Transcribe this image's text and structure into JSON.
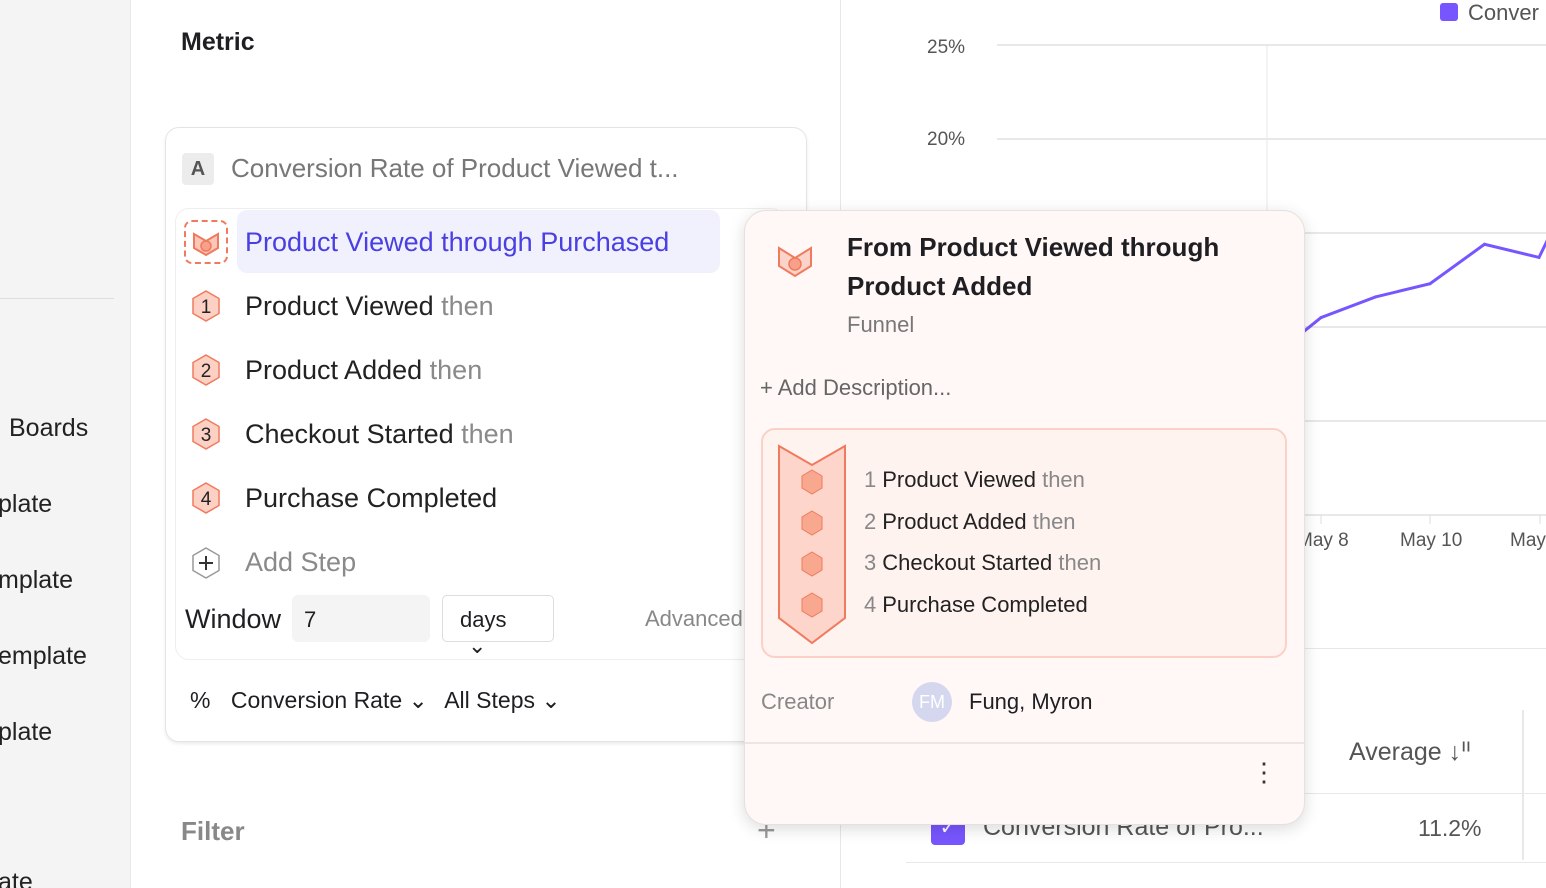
{
  "sidebar": {
    "items": [
      "Boards",
      "plate",
      "mplate",
      "emplate",
      "plate",
      "ate"
    ]
  },
  "metric": {
    "title": "Metric",
    "badge": "A",
    "card_title": "Conversion Rate of Product Viewed t...",
    "selected": "Product Viewed through Purchased",
    "steps": [
      {
        "num": "1",
        "name": "Product Viewed",
        "suffix": "then"
      },
      {
        "num": "2",
        "name": "Product Added",
        "suffix": "then"
      },
      {
        "num": "3",
        "name": "Checkout Started",
        "suffix": "then"
      },
      {
        "num": "4",
        "name": "Purchase Completed",
        "suffix": ""
      }
    ],
    "add_step": "Add Step",
    "window_label": "Window",
    "window_value": "7",
    "window_unit": "days",
    "advanced": "Advanced",
    "measure_icon": "%",
    "measure": "Conversion Rate",
    "steps_scope": "All Steps"
  },
  "filter": {
    "label": "Filter",
    "add": "+"
  },
  "popup": {
    "title": "From Product Viewed through Product Added",
    "type": "Funnel",
    "add_description": "+ Add Description...",
    "steps": [
      {
        "num": "1",
        "name": "Product Viewed",
        "suffix": "then"
      },
      {
        "num": "2",
        "name": "Product Added",
        "suffix": "then"
      },
      {
        "num": "3",
        "name": "Checkout Started",
        "suffix": "then"
      },
      {
        "num": "4",
        "name": "Purchase Completed",
        "suffix": ""
      }
    ],
    "creator_label": "Creator",
    "creator_initials": "FM",
    "creator_name": "Fung, Myron",
    "more": "⋮"
  },
  "chart_data": {
    "type": "line",
    "legend": "Conver",
    "legend_position": "top-right",
    "color": "#7856ff",
    "grid": true,
    "yticks": [
      "25%",
      "20%"
    ],
    "ylim": [
      0,
      25
    ],
    "xticks": [
      "May 8",
      "May 10",
      "May"
    ],
    "x": [
      "May 8",
      "May 9",
      "May 10",
      "May 11",
      "May 12"
    ],
    "series": [
      {
        "values": [
          10.5,
          11.6,
          12.3,
          14.4,
          13.7
        ]
      }
    ]
  },
  "table": {
    "header": "Average",
    "sort_icon": "↓ᑊᑊ",
    "row": {
      "name": "Conversion Rate of Pro...",
      "value": "11.2%"
    }
  }
}
